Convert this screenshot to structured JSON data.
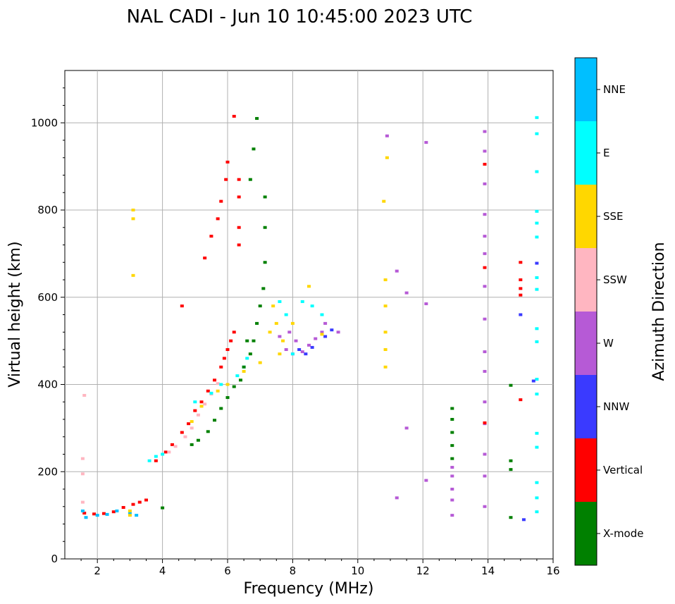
{
  "chart_data": {
    "type": "scatter",
    "title": "NAL CADI - Jun 10 10:45:00 2023 UTC",
    "xlabel": "Frequency (MHz)",
    "ylabel": "Virtual height (km)",
    "xlim": [
      1.0,
      16.0
    ],
    "ylim": [
      0,
      1120
    ],
    "xticks": [
      2,
      4,
      6,
      8,
      10,
      12,
      14,
      16
    ],
    "xtick_labels": [
      "2",
      "4",
      "6",
      "8",
      "10",
      "12",
      "14",
      "16"
    ],
    "yticks": [
      0,
      200,
      400,
      600,
      800,
      1000
    ],
    "ytick_labels": [
      "0",
      "200",
      "400",
      "600",
      "800",
      "1000"
    ],
    "grid": true,
    "colorbar": {
      "label": "Azimuth Direction",
      "categories": [
        "X-mode",
        "Vertical",
        "NNW",
        "W",
        "SSW",
        "SSE",
        "E",
        "NNE"
      ],
      "colors": [
        "#008000",
        "#ff0000",
        "#3a3aff",
        "#b65ad6",
        "#ffb6c1",
        "#ffd700",
        "#00ffff",
        "#00bfff"
      ]
    },
    "traces": [
      {
        "name": "o-trace-low",
        "category": "Vertical",
        "points": [
          [
            1.6,
            105
          ],
          [
            1.9,
            103
          ],
          [
            2.2,
            104
          ],
          [
            2.5,
            108
          ],
          [
            2.8,
            118
          ],
          [
            3.1,
            125
          ],
          [
            3.3,
            130
          ],
          [
            3.5,
            135
          ]
        ]
      },
      {
        "name": "o-trace-low-mixed",
        "category": "NNE",
        "points": [
          [
            1.55,
            110
          ],
          [
            1.65,
            95
          ],
          [
            2.0,
            100
          ],
          [
            2.3,
            102
          ],
          [
            2.6,
            110
          ],
          [
            3.0,
            105
          ],
          [
            3.2,
            100
          ]
        ]
      },
      {
        "name": "o-trace-f",
        "category": "Vertical",
        "points": [
          [
            3.8,
            225
          ],
          [
            4.1,
            245
          ],
          [
            4.3,
            262
          ],
          [
            4.6,
            290
          ],
          [
            4.8,
            310
          ],
          [
            5.0,
            340
          ],
          [
            5.2,
            360
          ],
          [
            5.4,
            385
          ],
          [
            5.6,
            410
          ],
          [
            5.8,
            440
          ],
          [
            5.9,
            460
          ],
          [
            6.0,
            480
          ],
          [
            6.1,
            500
          ],
          [
            6.2,
            520
          ]
        ]
      },
      {
        "name": "o-trace-f-ssw",
        "category": "SSW",
        "points": [
          [
            4.2,
            245
          ],
          [
            4.4,
            258
          ],
          [
            4.7,
            280
          ],
          [
            4.9,
            300
          ],
          [
            5.1,
            330
          ],
          [
            5.3,
            355
          ],
          [
            5.5,
            378
          ],
          [
            5.7,
            402
          ]
        ]
      },
      {
        "name": "o-trace-f-cyan",
        "category": "E",
        "points": [
          [
            3.6,
            225
          ],
          [
            3.8,
            235
          ],
          [
            4.0,
            240
          ],
          [
            5.0,
            360
          ],
          [
            5.5,
            380
          ],
          [
            5.8,
            400
          ],
          [
            6.3,
            420
          ],
          [
            6.5,
            440
          ],
          [
            6.6,
            460
          ]
        ]
      },
      {
        "name": "o-trace-f-sse",
        "category": "SSE",
        "points": [
          [
            4.9,
            315
          ],
          [
            5.2,
            350
          ],
          [
            5.7,
            385
          ],
          [
            6.0,
            400
          ],
          [
            6.5,
            430
          ],
          [
            7.0,
            450
          ],
          [
            7.3,
            520
          ],
          [
            7.5,
            540
          ],
          [
            7.7,
            500
          ]
        ]
      },
      {
        "name": "x-trace-f",
        "category": "X-mode",
        "points": [
          [
            4.0,
            117
          ],
          [
            4.9,
            262
          ],
          [
            5.1,
            272
          ],
          [
            5.4,
            292
          ],
          [
            5.6,
            318
          ],
          [
            5.8,
            345
          ],
          [
            6.0,
            370
          ],
          [
            6.2,
            395
          ],
          [
            6.4,
            410
          ],
          [
            6.5,
            440
          ],
          [
            6.7,
            470
          ],
          [
            6.8,
            500
          ],
          [
            6.9,
            540
          ],
          [
            7.0,
            580
          ],
          [
            7.1,
            620
          ],
          [
            7.15,
            680
          ],
          [
            7.15,
            760
          ],
          [
            7.15,
            830
          ]
        ]
      },
      {
        "name": "x-trace-spread",
        "category": "X-mode",
        "points": [
          [
            6.6,
            500
          ],
          [
            6.8,
            940
          ],
          [
            6.9,
            1010
          ],
          [
            6.7,
            870
          ]
        ]
      },
      {
        "name": "o-trace-spread-upper",
        "category": "Vertical",
        "points": [
          [
            4.6,
            580
          ],
          [
            5.3,
            690
          ],
          [
            5.5,
            740
          ],
          [
            5.7,
            780
          ],
          [
            5.8,
            820
          ],
          [
            5.95,
            870
          ],
          [
            6.0,
            910
          ],
          [
            6.2,
            1015
          ],
          [
            6.35,
            870
          ],
          [
            6.35,
            760
          ],
          [
            6.35,
            720
          ],
          [
            6.35,
            830
          ]
        ]
      },
      {
        "name": "w-spread-f",
        "category": "W",
        "points": [
          [
            7.8,
            480
          ],
          [
            8.0,
            470
          ],
          [
            8.3,
            475
          ],
          [
            8.5,
            490
          ],
          [
            8.7,
            505
          ],
          [
            8.9,
            520
          ],
          [
            9.0,
            540
          ],
          [
            9.4,
            520
          ],
          [
            7.6,
            510
          ],
          [
            7.9,
            520
          ],
          [
            8.1,
            500
          ]
        ]
      },
      {
        "name": "nnw-spread-f",
        "category": "NNW",
        "points": [
          [
            8.2,
            480
          ],
          [
            8.4,
            470
          ],
          [
            8.6,
            485
          ],
          [
            9.0,
            510
          ],
          [
            9.2,
            525
          ]
        ]
      },
      {
        "name": "cyan-spread-f",
        "category": "E",
        "points": [
          [
            7.6,
            590
          ],
          [
            7.8,
            560
          ],
          [
            8.0,
            470
          ],
          [
            8.3,
            590
          ],
          [
            8.6,
            580
          ],
          [
            8.9,
            560
          ]
        ]
      },
      {
        "name": "sse-spread-f",
        "category": "SSE",
        "points": [
          [
            7.4,
            580
          ],
          [
            7.6,
            470
          ],
          [
            8.0,
            540
          ],
          [
            8.5,
            625
          ],
          [
            8.9,
            515
          ]
        ]
      },
      {
        "name": "freq-3mhz-column",
        "category": "SSE",
        "points": [
          [
            3.1,
            780
          ],
          [
            3.1,
            800
          ],
          [
            3.1,
            650
          ],
          [
            3.0,
            110
          ],
          [
            3.0,
            100
          ]
        ]
      },
      {
        "name": "freq-1.5mhz-column",
        "category": "SSW",
        "points": [
          [
            1.55,
            230
          ],
          [
            1.55,
            195
          ],
          [
            1.6,
            375
          ],
          [
            1.55,
            130
          ]
        ]
      },
      {
        "name": "freq-10.8mhz-column",
        "category": "SSE",
        "points": [
          [
            10.85,
            440
          ],
          [
            10.85,
            480
          ],
          [
            10.85,
            520
          ],
          [
            10.85,
            580
          ],
          [
            10.85,
            640
          ],
          [
            10.9,
            920
          ],
          [
            10.8,
            820
          ]
        ]
      },
      {
        "name": "freq-11-12mhz",
        "category": "W",
        "points": [
          [
            10.9,
            970
          ],
          [
            11.2,
            660
          ],
          [
            11.2,
            140
          ],
          [
            11.5,
            610
          ],
          [
            12.1,
            955
          ],
          [
            12.1,
            585
          ],
          [
            12.1,
            180
          ],
          [
            11.5,
            300
          ]
        ]
      },
      {
        "name": "freq-12.9mhz-column",
        "category": "X-mode",
        "points": [
          [
            12.9,
            345
          ],
          [
            12.9,
            320
          ],
          [
            12.9,
            290
          ],
          [
            12.9,
            260
          ],
          [
            12.9,
            230
          ]
        ]
      },
      {
        "name": "freq-12.9mhz-mixed",
        "category": "W",
        "points": [
          [
            12.9,
            210
          ],
          [
            12.9,
            190
          ],
          [
            12.9,
            160
          ],
          [
            12.9,
            135
          ],
          [
            12.9,
            100
          ]
        ]
      },
      {
        "name": "freq-13.9mhz-column",
        "category": "W",
        "points": [
          [
            13.9,
            980
          ],
          [
            13.9,
            935
          ],
          [
            13.9,
            860
          ],
          [
            13.9,
            790
          ],
          [
            13.9,
            740
          ],
          [
            13.9,
            700
          ],
          [
            13.9,
            625
          ],
          [
            13.9,
            550
          ],
          [
            13.9,
            475
          ],
          [
            13.9,
            430
          ],
          [
            13.9,
            360
          ],
          [
            13.9,
            310
          ],
          [
            13.9,
            240
          ],
          [
            13.9,
            190
          ],
          [
            13.9,
            120
          ]
        ]
      },
      {
        "name": "freq-13.9mhz-red",
        "category": "Vertical",
        "points": [
          [
            13.9,
            905
          ],
          [
            13.9,
            668
          ],
          [
            13.9,
            312
          ]
        ]
      },
      {
        "name": "freq-14.7mhz-column",
        "category": "X-mode",
        "points": [
          [
            14.7,
            398
          ],
          [
            14.7,
            225
          ],
          [
            14.7,
            205
          ],
          [
            14.7,
            95
          ]
        ]
      },
      {
        "name": "freq-15mhz-red",
        "category": "Vertical",
        "points": [
          [
            15.0,
            680
          ],
          [
            15.0,
            640
          ],
          [
            15.0,
            620
          ],
          [
            15.0,
            605
          ],
          [
            15.0,
            365
          ]
        ]
      },
      {
        "name": "freq-15.5mhz-cyan",
        "category": "E",
        "points": [
          [
            15.5,
            1012
          ],
          [
            15.5,
            975
          ],
          [
            15.5,
            888
          ],
          [
            15.5,
            797
          ],
          [
            15.5,
            770
          ],
          [
            15.5,
            738
          ],
          [
            15.5,
            645
          ],
          [
            15.5,
            618
          ],
          [
            15.5,
            528
          ],
          [
            15.5,
            498
          ],
          [
            15.5,
            412
          ],
          [
            15.5,
            378
          ],
          [
            15.5,
            288
          ],
          [
            15.5,
            256
          ],
          [
            15.5,
            175
          ],
          [
            15.5,
            140
          ],
          [
            15.5,
            108
          ]
        ]
      },
      {
        "name": "freq-15.5mhz-nnw",
        "category": "NNW",
        "points": [
          [
            15.5,
            678
          ],
          [
            15.4,
            408
          ],
          [
            15.1,
            90
          ],
          [
            15.0,
            560
          ]
        ]
      }
    ]
  }
}
